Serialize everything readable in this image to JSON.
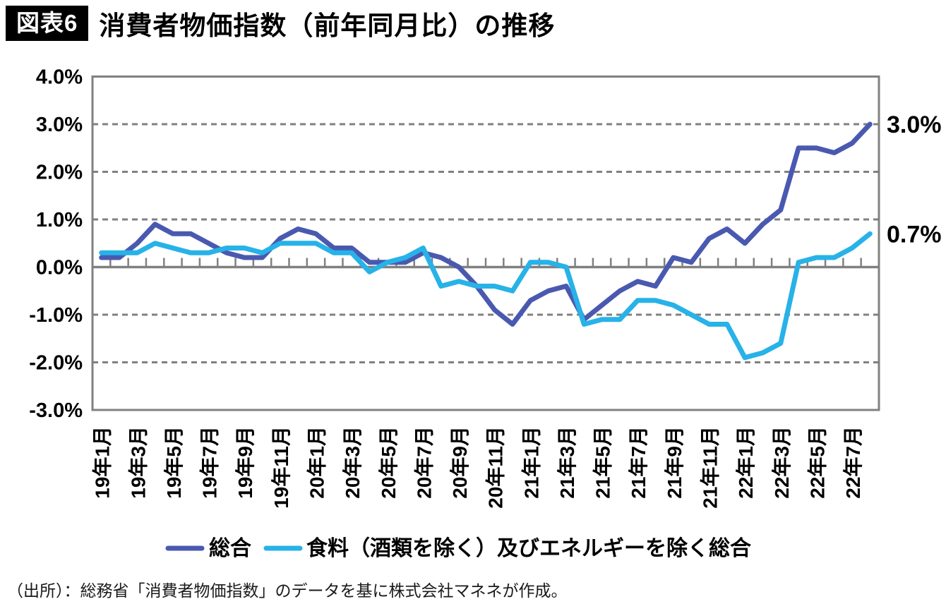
{
  "header": {
    "tag": "図表6",
    "title": "消費者物価指数（前年同月比）の推移"
  },
  "source_note": "（出所）：総務省「消費者物価指数」のデータを基に株式会社マネネが作成。",
  "chart_data": {
    "type": "line",
    "title": "消費者物価指数（前年同月比）の推移",
    "grid": "horizontal-dashed",
    "legend_position": "bottom",
    "ylim": [
      -3.0,
      4.0
    ],
    "y_tick_step": 1.0,
    "y_tick_labels": [
      "4.0%",
      "3.0%",
      "2.0%",
      "1.0%",
      "0.0%",
      "-1.0%",
      "-2.0%",
      "-3.0%"
    ],
    "axis_color": "#808080",
    "x": [
      "19年1月",
      "19年2月",
      "19年3月",
      "19年4月",
      "19年5月",
      "19年6月",
      "19年7月",
      "19年8月",
      "19年9月",
      "19年10月",
      "19年11月",
      "19年12月",
      "20年1月",
      "20年2月",
      "20年3月",
      "20年4月",
      "20年5月",
      "20年6月",
      "20年7月",
      "20年8月",
      "20年9月",
      "20年10月",
      "20年11月",
      "20年12月",
      "21年1月",
      "21年2月",
      "21年3月",
      "21年4月",
      "21年5月",
      "21年6月",
      "21年7月",
      "21年8月",
      "21年9月",
      "21年10月",
      "21年11月",
      "21年12月",
      "22年1月",
      "22年2月",
      "22年3月",
      "22年4月",
      "22年5月",
      "22年6月",
      "22年7月",
      "22年8月"
    ],
    "x_tick_labels": [
      "19年1月",
      "19年3月",
      "19年5月",
      "19年7月",
      "19年9月",
      "19年11月",
      "20年1月",
      "20年3月",
      "20年5月",
      "20年7月",
      "20年9月",
      "20年11月",
      "21年1月",
      "21年3月",
      "21年5月",
      "21年7月",
      "21年9月",
      "21年11月",
      "22年1月",
      "22年3月",
      "22年5月",
      "22年7月"
    ],
    "series": [
      {
        "name": "総合",
        "color": "#4A59B0",
        "values": [
          0.2,
          0.2,
          0.5,
          0.9,
          0.7,
          0.7,
          0.5,
          0.3,
          0.2,
          0.2,
          0.6,
          0.8,
          0.7,
          0.4,
          0.4,
          0.1,
          0.1,
          0.1,
          0.3,
          0.2,
          0.0,
          -0.4,
          -0.9,
          -1.2,
          -0.7,
          -0.5,
          -0.4,
          -1.1,
          -0.8,
          -0.5,
          -0.3,
          -0.4,
          0.2,
          0.1,
          0.6,
          0.8,
          0.5,
          0.9,
          1.2,
          2.5,
          2.5,
          2.4,
          2.6,
          3.0
        ]
      },
      {
        "name": "食料（酒類を除く）及びエネルギーを除く総合",
        "color": "#27B2E8",
        "values": [
          0.3,
          0.3,
          0.3,
          0.5,
          0.4,
          0.3,
          0.3,
          0.4,
          0.4,
          0.3,
          0.5,
          0.5,
          0.5,
          0.3,
          0.3,
          -0.1,
          0.1,
          0.2,
          0.4,
          -0.4,
          -0.3,
          -0.4,
          -0.4,
          -0.5,
          0.1,
          0.1,
          0.0,
          -1.2,
          -1.1,
          -1.1,
          -0.7,
          -0.7,
          -0.8,
          -1.0,
          -1.2,
          -1.2,
          -1.9,
          -1.8,
          -1.6,
          0.1,
          0.2,
          0.2,
          0.4,
          0.7
        ]
      }
    ],
    "end_labels": [
      {
        "series": "総合",
        "text": "3.0%"
      },
      {
        "series": "食料（酒類を除く）及びエネルギーを除く総合",
        "text": "0.7%"
      }
    ]
  }
}
